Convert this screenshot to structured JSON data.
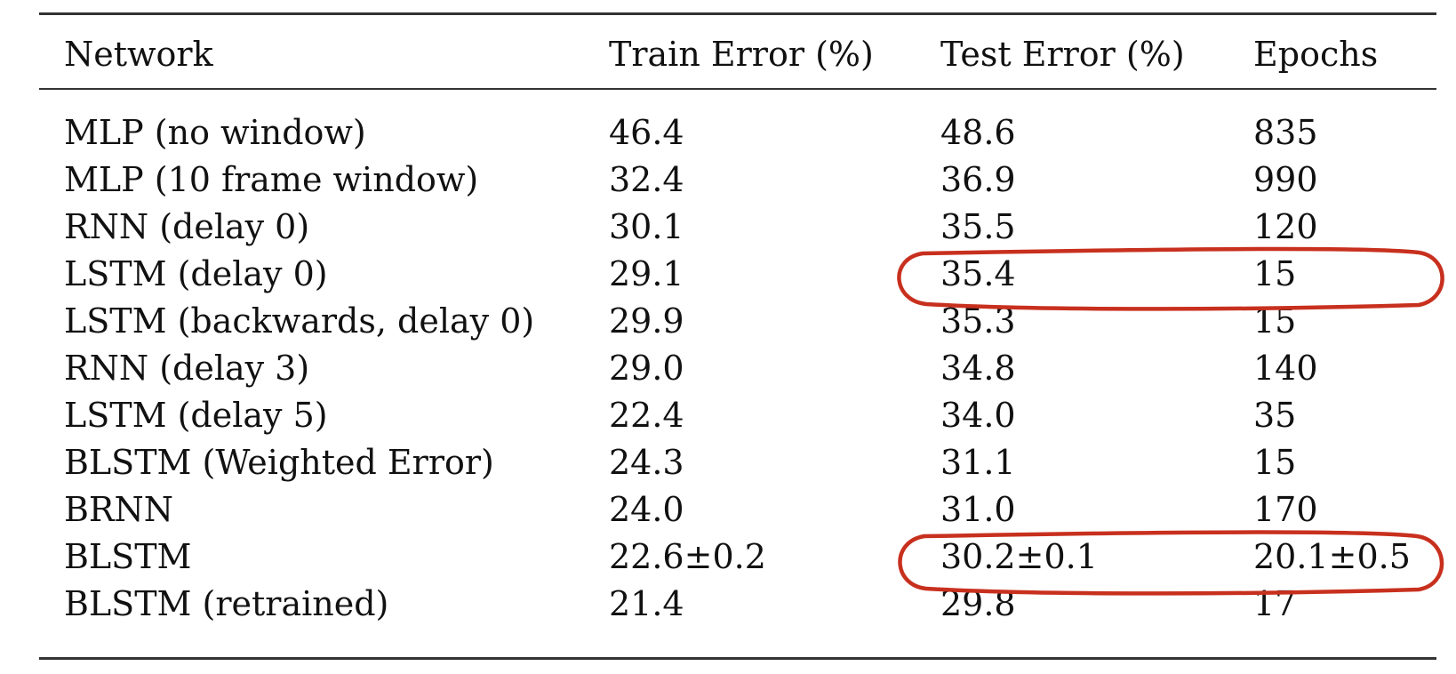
{
  "table": {
    "headers": [
      "Network",
      "Train Error (%)",
      "Test Error (%)",
      "Epochs"
    ],
    "rows": [
      [
        "MLP (no window)",
        "46.4",
        "48.6",
        "835"
      ],
      [
        "MLP (10 frame window)",
        "32.4",
        "36.9",
        "990"
      ],
      [
        "RNN (delay 0)",
        "30.1",
        "35.5",
        "120"
      ],
      [
        "LSTM (delay 0)",
        "29.1",
        "35.4",
        "15"
      ],
      [
        "LSTM (backwards, delay 0)",
        "29.9",
        "35.3",
        "15"
      ],
      [
        "RNN (delay 3)",
        "29.0",
        "34.8",
        "140"
      ],
      [
        "LSTM (delay 5)",
        "22.4",
        "34.0",
        "35"
      ],
      [
        "BLSTM (Weighted Error)",
        "24.3",
        "31.1",
        "15"
      ],
      [
        "BRNN",
        "24.0",
        "31.0",
        "170"
      ],
      [
        "BLSTM",
        "22.6±0.2",
        "30.2±0.1",
        "20.1±0.5"
      ],
      [
        "BLSTM (retrained)",
        "21.4",
        "29.8",
        "17"
      ]
    ]
  },
  "annotations": {
    "highlight_color": "#c8301e",
    "highlighted_rows": [
      3,
      9
    ]
  }
}
